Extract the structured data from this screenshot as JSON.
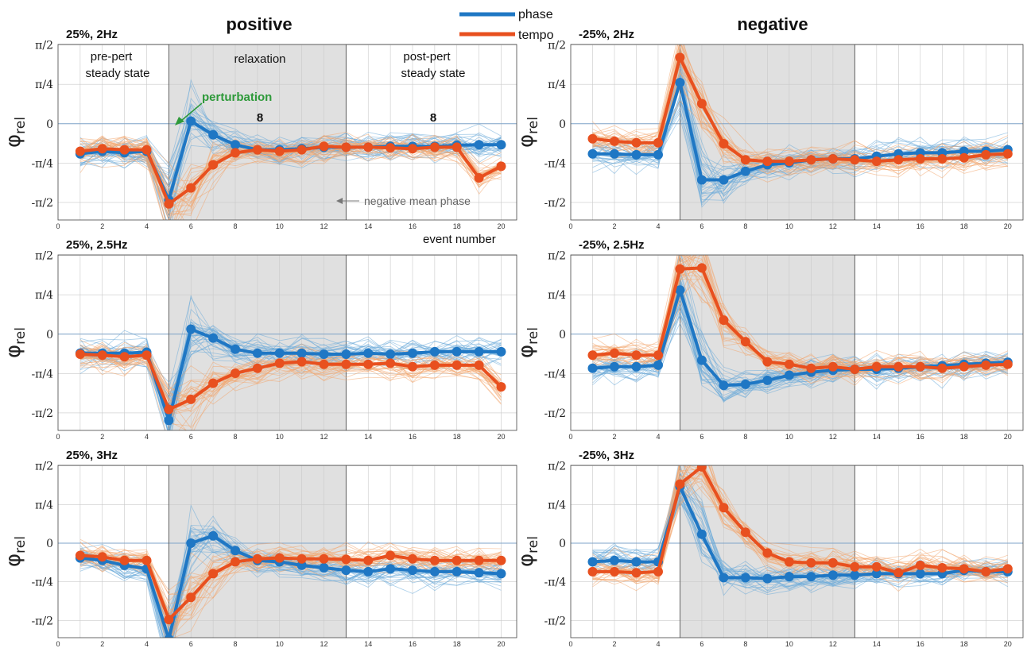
{
  "chart_data": {
    "type": "line",
    "column_titles": [
      "positive",
      "negative"
    ],
    "legend": {
      "placement": "top-center",
      "entries": [
        {
          "name": "phase",
          "color": "#1f77c4"
        },
        {
          "name": "tempo",
          "color": "#e8501f"
        }
      ]
    },
    "ylabel": "φ",
    "ylabel_sub": "rel",
    "yticks": [
      "π/2",
      "π/4",
      "0",
      "-π/4",
      "-π/2"
    ],
    "xticks": [
      0,
      2,
      4,
      6,
      8,
      10,
      12,
      14,
      16,
      18,
      20
    ],
    "xlim": [
      0,
      20.7
    ],
    "ylim": [
      -1.92,
      1.58
    ],
    "shaded_region": [
      5,
      13
    ],
    "annotations": {
      "pre": [
        "pre-pert",
        "steady state"
      ],
      "relax": "relaxation",
      "post": [
        "post-pert",
        "steady state"
      ],
      "perturbation": "perturbation",
      "count_relax": "8",
      "count_post": "8",
      "neg_mean": "negative mean phase",
      "event_number": "event number"
    },
    "panels": [
      {
        "title": "25%, 2Hz",
        "phase": [
          -0.6,
          -0.55,
          -0.58,
          -0.55,
          -1.52,
          0.05,
          -0.22,
          -0.42,
          -0.52,
          -0.52,
          -0.5,
          -0.47,
          -0.47,
          -0.47,
          -0.45,
          -0.45,
          -0.45,
          -0.43,
          -0.42,
          -0.42
        ],
        "tempo": [
          -0.55,
          -0.5,
          -0.52,
          -0.52,
          -1.6,
          -1.28,
          -0.82,
          -0.58,
          -0.52,
          -0.55,
          -0.52,
          -0.45,
          -0.47,
          -0.47,
          -0.48,
          -0.5,
          -0.47,
          -0.47,
          -1.08,
          -0.85
        ]
      },
      {
        "title": "-25%, 2Hz",
        "phase": [
          -0.6,
          -0.6,
          -0.62,
          -0.62,
          0.82,
          -1.12,
          -1.12,
          -0.95,
          -0.82,
          -0.78,
          -0.72,
          -0.7,
          -0.7,
          -0.65,
          -0.6,
          -0.58,
          -0.58,
          -0.55,
          -0.55,
          -0.52
        ],
        "tempo": [
          -0.3,
          -0.35,
          -0.38,
          -0.38,
          1.32,
          0.4,
          -0.4,
          -0.72,
          -0.75,
          -0.75,
          -0.72,
          -0.7,
          -0.72,
          -0.75,
          -0.72,
          -0.7,
          -0.7,
          -0.68,
          -0.62,
          -0.6
        ]
      },
      {
        "title": "25%, 2.5Hz",
        "phase": [
          -0.38,
          -0.38,
          -0.38,
          -0.36,
          -1.72,
          0.1,
          -0.08,
          -0.3,
          -0.38,
          -0.38,
          -0.38,
          -0.4,
          -0.4,
          -0.38,
          -0.4,
          -0.38,
          -0.35,
          -0.35,
          -0.35,
          -0.35
        ],
        "tempo": [
          -0.4,
          -0.42,
          -0.45,
          -0.42,
          -1.5,
          -1.3,
          -0.98,
          -0.78,
          -0.68,
          -0.58,
          -0.55,
          -0.6,
          -0.6,
          -0.6,
          -0.58,
          -0.65,
          -0.62,
          -0.62,
          -0.62,
          -1.05
        ]
      },
      {
        "title": "-25%, 2.5Hz",
        "phase": [
          -0.68,
          -0.65,
          -0.65,
          -0.62,
          0.88,
          -0.52,
          -1.02,
          -1.0,
          -0.92,
          -0.82,
          -0.76,
          -0.72,
          -0.7,
          -0.7,
          -0.68,
          -0.65,
          -0.63,
          -0.6,
          -0.58,
          -0.56
        ],
        "tempo": [
          -0.42,
          -0.38,
          -0.42,
          -0.42,
          1.3,
          1.32,
          0.28,
          -0.15,
          -0.55,
          -0.6,
          -0.68,
          -0.65,
          -0.7,
          -0.65,
          -0.65,
          -0.65,
          -0.68,
          -0.65,
          -0.62,
          -0.6
        ]
      },
      {
        "title": "25%, 3Hz",
        "phase": [
          -0.3,
          -0.35,
          -0.45,
          -0.52,
          -1.95,
          0.0,
          0.15,
          -0.15,
          -0.35,
          -0.38,
          -0.45,
          -0.5,
          -0.55,
          -0.58,
          -0.52,
          -0.55,
          -0.58,
          -0.58,
          -0.6,
          -0.62
        ],
        "tempo": [
          -0.25,
          -0.28,
          -0.35,
          -0.35,
          -1.55,
          -1.1,
          -0.62,
          -0.38,
          -0.32,
          -0.3,
          -0.32,
          -0.32,
          -0.33,
          -0.35,
          -0.25,
          -0.32,
          -0.35,
          -0.35,
          -0.35,
          -0.35
        ]
      },
      {
        "title": "-25%, 3Hz",
        "phase": [
          -0.38,
          -0.35,
          -0.38,
          -0.38,
          1.15,
          0.18,
          -0.7,
          -0.7,
          -0.72,
          -0.68,
          -0.68,
          -0.65,
          -0.65,
          -0.62,
          -0.62,
          -0.62,
          -0.62,
          -0.55,
          -0.58,
          -0.58
        ],
        "tempo": [
          -0.58,
          -0.58,
          -0.6,
          -0.58,
          1.2,
          1.55,
          0.72,
          0.22,
          -0.2,
          -0.38,
          -0.4,
          -0.4,
          -0.48,
          -0.48,
          -0.6,
          -0.45,
          -0.5,
          -0.52,
          -0.58,
          -0.52
        ]
      }
    ]
  }
}
